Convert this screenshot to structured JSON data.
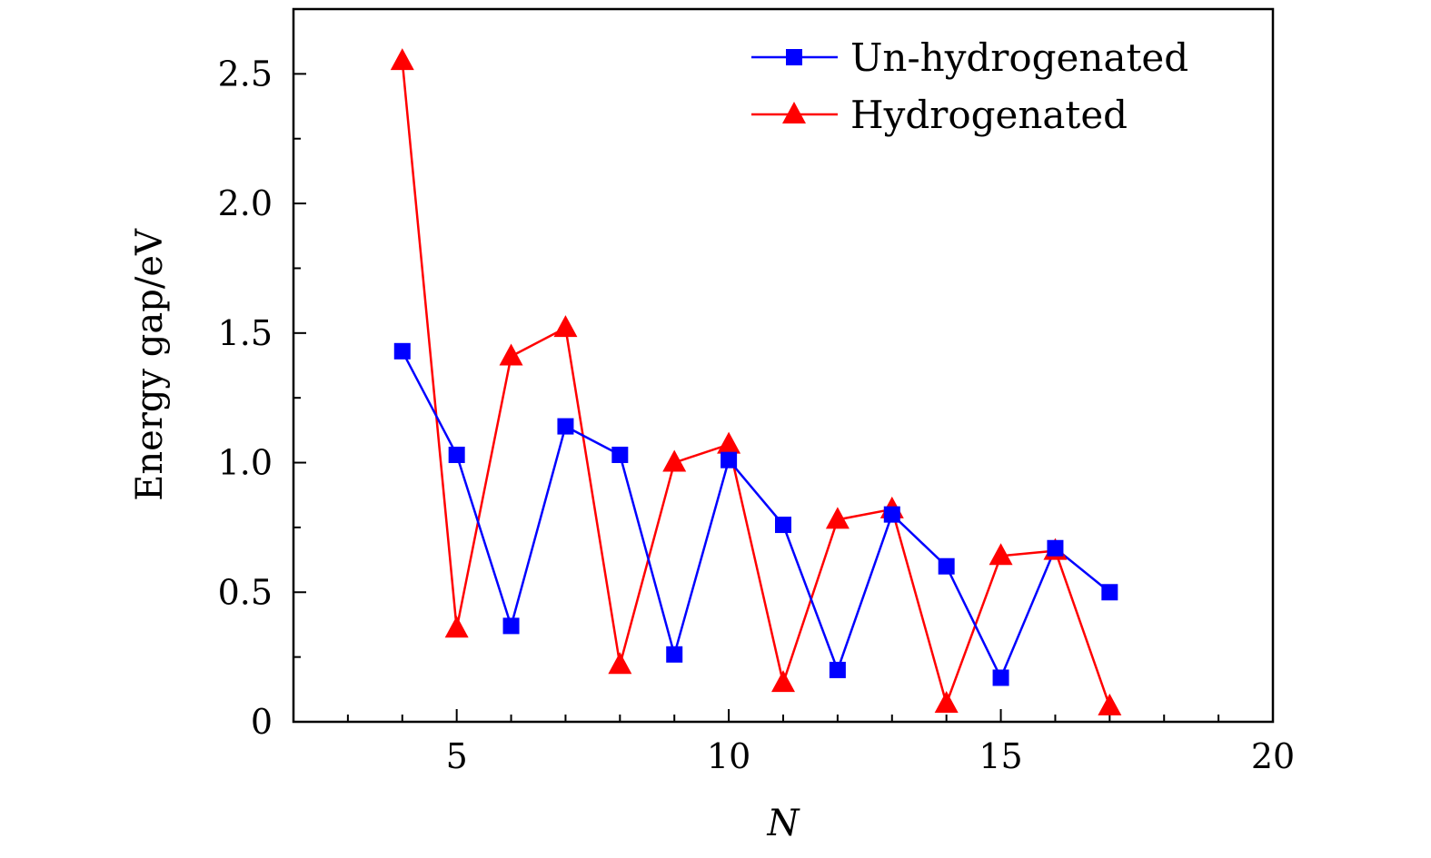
{
  "chart_data": {
    "type": "line",
    "xlabel": "N",
    "ylabel": "Energy gap/eV",
    "xlim": [
      2,
      20
    ],
    "ylim": [
      0,
      2.75
    ],
    "x_ticks": [
      {
        "value": 5,
        "label": "5"
      },
      {
        "value": 10,
        "label": "10"
      },
      {
        "value": 15,
        "label": "15"
      },
      {
        "value": 20,
        "label": "20"
      }
    ],
    "y_ticks": [
      {
        "value": 0,
        "label": "0"
      },
      {
        "value": 0.5,
        "label": "0.5"
      },
      {
        "value": 1.0,
        "label": "1.0"
      },
      {
        "value": 1.5,
        "label": "1.5"
      },
      {
        "value": 2.0,
        "label": "2.0"
      },
      {
        "value": 2.5,
        "label": "2.5"
      }
    ],
    "x": [
      4,
      5,
      6,
      7,
      8,
      9,
      10,
      11,
      12,
      13,
      14,
      15,
      16,
      17
    ],
    "series": [
      {
        "name": "Un-hydrogenated",
        "color": "#0000ff",
        "marker": "square",
        "values": [
          1.43,
          1.03,
          0.37,
          1.14,
          1.03,
          0.26,
          1.01,
          0.76,
          0.2,
          0.8,
          0.6,
          0.17,
          0.67,
          0.5
        ]
      },
      {
        "name": "Hydrogenated",
        "color": "#ff0000",
        "marker": "triangle",
        "values": [
          2.55,
          0.36,
          1.41,
          1.52,
          0.22,
          1.0,
          1.07,
          0.15,
          0.78,
          0.82,
          0.07,
          0.64,
          0.66,
          0.06
        ]
      }
    ],
    "legend_position": "top-right",
    "grid": false
  }
}
